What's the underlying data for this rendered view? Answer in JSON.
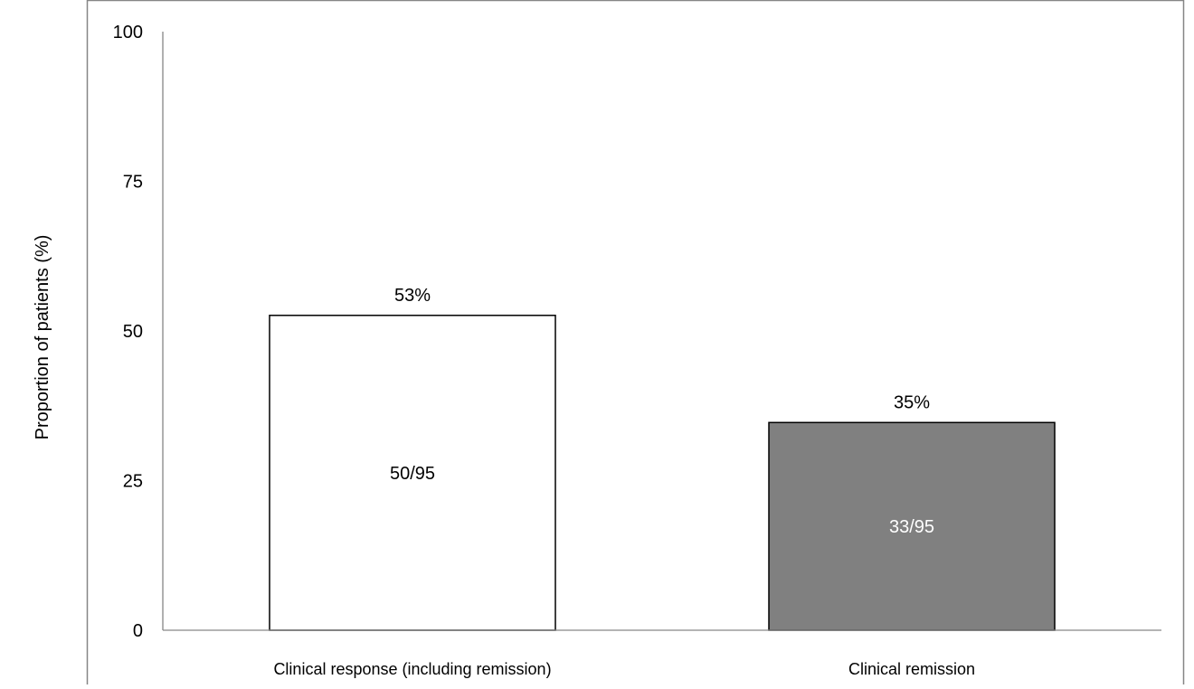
{
  "chart_data": {
    "type": "bar",
    "title": "",
    "xlabel": "",
    "ylabel": "Proportion of patients (%)",
    "ylim": [
      0,
      100
    ],
    "yticks": [
      "0",
      "25",
      "50",
      "75",
      "100"
    ],
    "grid": false,
    "legend": "none",
    "categories": [
      "Clinical response (including remission)",
      "Clinical remission"
    ],
    "values": [
      52.6,
      34.7
    ],
    "value_labels": [
      "53%",
      "35%"
    ],
    "inner_labels": [
      "50/95",
      "33/95"
    ],
    "colors": {
      "bar_fills": [
        "#ffffff",
        "#808080"
      ],
      "inner_label_colors": [
        "#000000",
        "#ffffff"
      ],
      "bar_stroke": "#000000",
      "axis": "#868686",
      "frame": "#868686"
    }
  }
}
